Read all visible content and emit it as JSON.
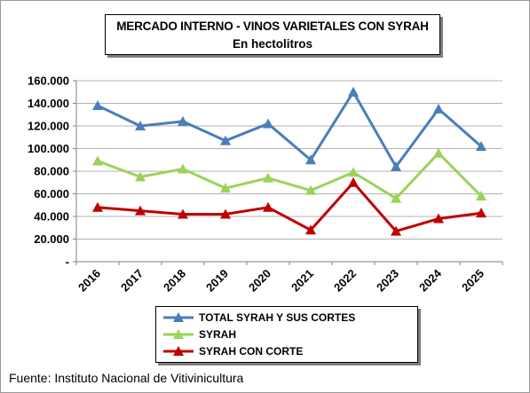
{
  "title": {
    "line1": "MERCADO INTERNO - VINOS VARIETALES CON SYRAH",
    "line2": "En hectolitros"
  },
  "source": "Fuente: Instituto Nacional de Vitivinicultura",
  "chart_data": {
    "type": "line",
    "categories": [
      "2016",
      "2017",
      "2018",
      "2019",
      "2020",
      "2021",
      "2022",
      "2023",
      "2024",
      "2025"
    ],
    "series": [
      {
        "name": "TOTAL SYRAH Y SUS CORTES",
        "color": "#4a7ebb",
        "values": [
          138000,
          120000,
          124000,
          107000,
          122000,
          90000,
          150000,
          84000,
          135000,
          102000
        ]
      },
      {
        "name": "SYRAH",
        "color": "#9bd35a",
        "values": [
          89000,
          75000,
          82000,
          65000,
          74000,
          63000,
          79000,
          56000,
          96000,
          58000
        ]
      },
      {
        "name": "SYRAH CON CORTE",
        "color": "#c00000",
        "values": [
          48000,
          45000,
          42000,
          42000,
          48000,
          28000,
          70000,
          27000,
          38000,
          43000
        ]
      }
    ],
    "ylim": [
      0,
      160000
    ],
    "yticks": [
      0,
      20000,
      40000,
      60000,
      80000,
      100000,
      120000,
      140000,
      160000
    ],
    "ytick_labels": [
      "-",
      "20.000",
      "40.000",
      "60.000",
      "80.000",
      "100.000",
      "120.000",
      "140.000",
      "160.000"
    ],
    "grid": true,
    "legend_position": "bottom",
    "marker": "triangle"
  }
}
